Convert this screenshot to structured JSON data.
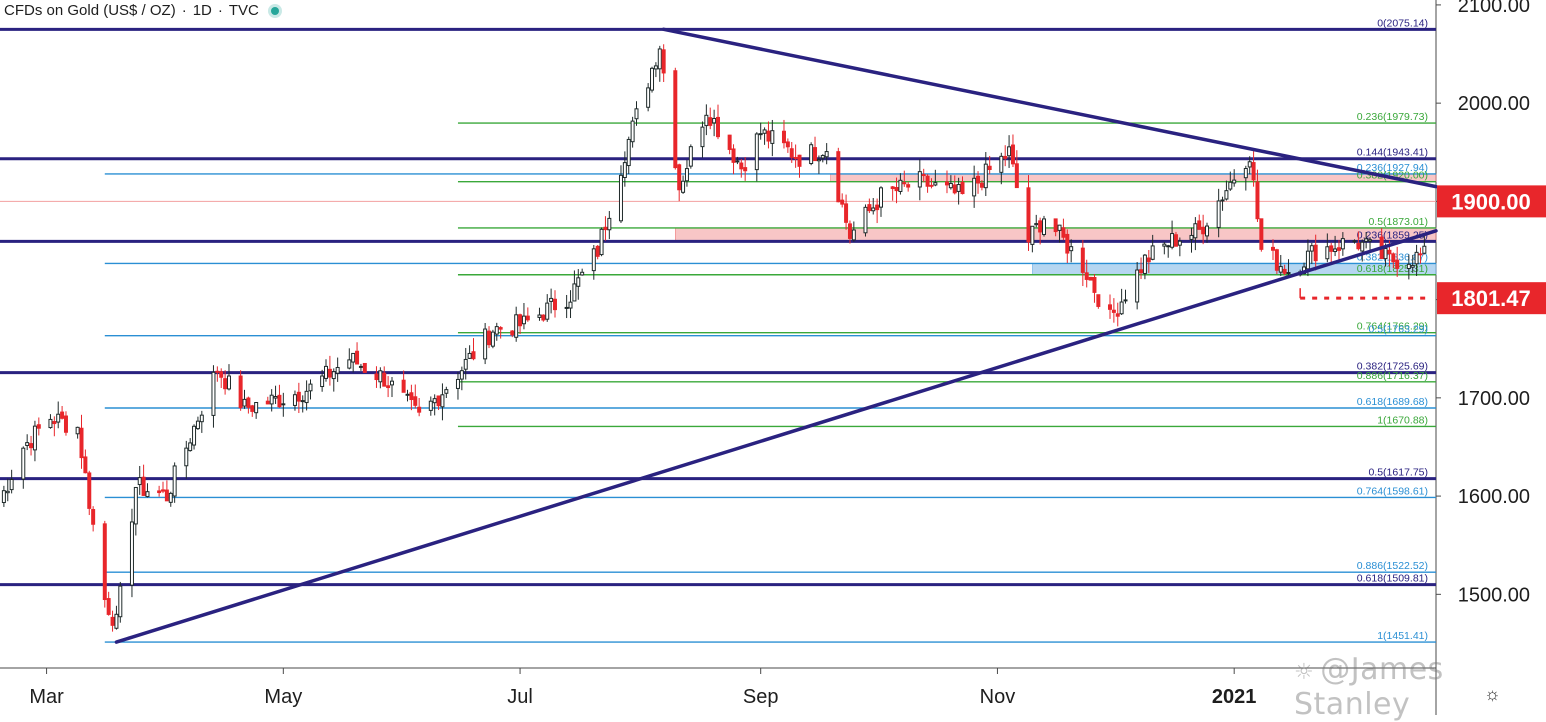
{
  "header": {
    "symbol": "CFDs on Gold (US$ / OZ)",
    "interval": "1D",
    "source": "TVC"
  },
  "watermark": "@James Stanley",
  "settings_icon": "gear-icon",
  "chart_data": {
    "type": "candlestick",
    "title": "CFDs on Gold (US$ / OZ) · 1D · TVC",
    "ylim": [
      1425,
      2105
    ],
    "y_ticks": [
      "2100.00",
      "2000.00",
      "1900.00",
      "1800.00",
      "1700.00",
      "1600.00",
      "1500.00"
    ],
    "y_tick_values": [
      2100,
      2000,
      1900,
      1800,
      1700,
      1600,
      1500
    ],
    "x_ticks": [
      "Mar",
      "May",
      "Jul",
      "Sep",
      "Nov",
      "2021"
    ],
    "x_tick_dates": [
      "2020-03-01",
      "2020-05-01",
      "2020-07-01",
      "2020-09-01",
      "2020-11-01",
      "2021-01-01"
    ],
    "x_start": "2020-02-18",
    "x_end": "2021-02-22",
    "price_labels": [
      {
        "value": 1900.0,
        "text": "1900.00",
        "color": "#e8262b"
      },
      {
        "value": 1801.47,
        "text": "1801.47",
        "color": "#e8262b"
      }
    ],
    "horizontal_lines": [
      {
        "value": 2075.14,
        "color": "#2a2280"
      },
      {
        "value": 1943.41,
        "color": "#2a2280"
      },
      {
        "value": 1859.25,
        "color": "#2a2280"
      },
      {
        "value": 1725.69,
        "color": "#2a2280"
      },
      {
        "value": 1617.75,
        "color": "#2a2280"
      },
      {
        "value": 1509.81,
        "color": "#2a2280"
      }
    ],
    "fib_levels": [
      {
        "label": "0(2075.14)",
        "value": 2075.14,
        "color": "#2a2280",
        "start": "2020-02-18"
      },
      {
        "label": "0.236(1979.73)",
        "value": 1979.73,
        "color": "#3aa83a",
        "start": "2020-06-15"
      },
      {
        "label": "0.144(1943.41)",
        "value": 1943.41,
        "color": "#2a2280",
        "start": "2020-02-18"
      },
      {
        "label": "0.236(1927.94)",
        "value": 1927.94,
        "color": "#2a8fd4",
        "start": "2020-03-16"
      },
      {
        "label": "0.382(1920.00)",
        "value": 1920.0,
        "color": "#3aa83a",
        "start": "2020-06-15"
      },
      {
        "label": "0.5(1873.01)",
        "value": 1873.01,
        "color": "#3aa83a",
        "start": "2020-06-15"
      },
      {
        "label": "0.236(1859.25)",
        "value": 1859.25,
        "color": "#2a2280",
        "start": "2020-02-18"
      },
      {
        "label": "0.382(1836.87)",
        "value": 1836.87,
        "color": "#2a8fd4",
        "start": "2020-03-16"
      },
      {
        "label": "0.618(1825.31)",
        "value": 1825.31,
        "color": "#3aa83a",
        "start": "2020-06-15"
      },
      {
        "label": "0.764(1766.29)",
        "value": 1766.29,
        "color": "#3aa83a",
        "start": "2020-06-15"
      },
      {
        "label": "0.5(1763.29)",
        "value": 1763.29,
        "color": "#2a8fd4",
        "start": "2020-03-16"
      },
      {
        "label": "0.382(1725.69)",
        "value": 1725.69,
        "color": "#2a2280",
        "start": "2020-02-18"
      },
      {
        "label": "0.886(1716.37)",
        "value": 1716.37,
        "color": "#3aa83a",
        "start": "2020-06-15"
      },
      {
        "label": "0.618(1689.68)",
        "value": 1689.68,
        "color": "#2a8fd4",
        "start": "2020-03-16"
      },
      {
        "label": "1(1670.88)",
        "value": 1670.88,
        "color": "#3aa83a",
        "start": "2020-06-15"
      },
      {
        "label": "0.5(1617.75)",
        "value": 1617.75,
        "color": "#2a2280",
        "start": "2020-02-18"
      },
      {
        "label": "0.764(1598.61)",
        "value": 1598.61,
        "color": "#2a8fd4",
        "start": "2020-03-16"
      },
      {
        "label": "0.886(1522.52)",
        "value": 1522.52,
        "color": "#2a8fd4",
        "start": "2020-03-16"
      },
      {
        "label": "0.618(1509.81)",
        "value": 1509.81,
        "color": "#2a2280",
        "start": "2020-02-18"
      },
      {
        "label": "1(1451.41)",
        "value": 1451.41,
        "color": "#2a8fd4",
        "start": "2020-03-16"
      }
    ],
    "zones": [
      {
        "from": "2020-09-19",
        "to": "2021-02-22",
        "low": 1920.0,
        "high": 1927.94,
        "color": "rgba(240,128,128,0.45)"
      },
      {
        "from": "2020-08-10",
        "to": "2021-02-22",
        "low": 1859.25,
        "high": 1873.01,
        "color": "rgba(240,128,128,0.45)"
      },
      {
        "from": "2020-11-10",
        "to": "2021-02-22",
        "low": 1825.31,
        "high": 1836.87,
        "color": "rgba(120,180,230,0.55)"
      }
    ],
    "trendlines": [
      {
        "from_date": "2020-08-07",
        "from_value": 2075.14,
        "to_date": "2021-02-22",
        "to_value": 1915,
        "color": "#2a2280"
      },
      {
        "from_date": "2020-03-19",
        "from_value": 1451.41,
        "to_date": "2021-02-22",
        "to_value": 1870,
        "color": "#2a2280"
      }
    ],
    "support_marker": {
      "value": 1801.47,
      "from": "2021-01-18",
      "to": "2021-02-21",
      "color": "#e8262b"
    },
    "reference_line": {
      "value": 1900.0,
      "color": "#f2a0a0"
    },
    "series": [
      {
        "name": "price",
        "anchors": [
          [
            "2020-02-18",
            1595
          ],
          [
            "2020-02-24",
            1650
          ],
          [
            "2020-03-02",
            1680
          ],
          [
            "2020-03-09",
            1670
          ],
          [
            "2020-03-16",
            1495
          ],
          [
            "2020-03-19",
            1470
          ],
          [
            "2020-03-24",
            1610
          ],
          [
            "2020-04-01",
            1600
          ],
          [
            "2020-04-14",
            1730
          ],
          [
            "2020-04-21",
            1690
          ],
          [
            "2020-05-01",
            1700
          ],
          [
            "2020-05-08",
            1710
          ],
          [
            "2020-05-18",
            1740
          ],
          [
            "2020-05-27",
            1720
          ],
          [
            "2020-06-05",
            1680
          ],
          [
            "2020-06-15",
            1725
          ],
          [
            "2020-06-24",
            1770
          ],
          [
            "2020-07-02",
            1775
          ],
          [
            "2020-07-14",
            1805
          ],
          [
            "2020-07-21",
            1850
          ],
          [
            "2020-07-28",
            1950
          ],
          [
            "2020-08-06",
            2060
          ],
          [
            "2020-08-11",
            1915
          ],
          [
            "2020-08-18",
            1995
          ],
          [
            "2020-08-27",
            1935
          ],
          [
            "2020-09-01",
            1970
          ],
          [
            "2020-09-11",
            1945
          ],
          [
            "2020-09-18",
            1955
          ],
          [
            "2020-09-24",
            1865
          ],
          [
            "2020-10-02",
            1905
          ],
          [
            "2020-10-12",
            1920
          ],
          [
            "2020-10-23",
            1905
          ],
          [
            "2020-11-04",
            1950
          ],
          [
            "2020-11-09",
            1860
          ],
          [
            "2020-11-13",
            1885
          ],
          [
            "2020-11-23",
            1835
          ],
          [
            "2020-11-30",
            1780
          ],
          [
            "2020-12-09",
            1840
          ],
          [
            "2020-12-16",
            1860
          ],
          [
            "2020-12-23",
            1870
          ],
          [
            "2021-01-05",
            1950
          ],
          [
            "2021-01-08",
            1850
          ],
          [
            "2021-01-15",
            1830
          ],
          [
            "2021-01-22",
            1850
          ],
          [
            "2021-02-01",
            1860
          ],
          [
            "2021-02-10",
            1840
          ],
          [
            "2021-02-21",
            1845
          ]
        ]
      }
    ]
  }
}
